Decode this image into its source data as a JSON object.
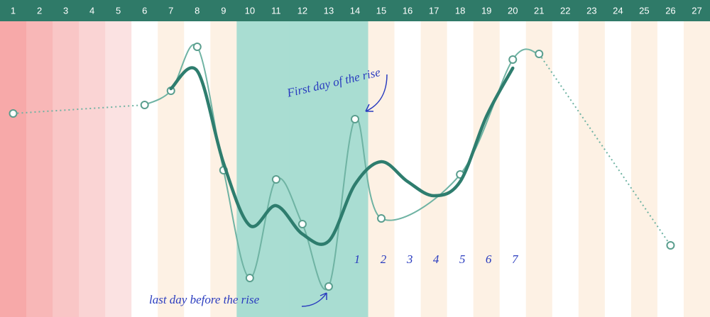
{
  "chart_data": {
    "type": "line",
    "categories": [
      "1",
      "2",
      "3",
      "4",
      "5",
      "6",
      "7",
      "8",
      "9",
      "10",
      "11",
      "12",
      "13",
      "14",
      "15",
      "16",
      "17",
      "18",
      "19",
      "20",
      "21",
      "22",
      "23",
      "24",
      "25",
      "26",
      "27"
    ],
    "series": [
      {
        "color": "#6fb3a3",
        "values": [
          70,
          null,
          null,
          null,
          null,
          73,
          78,
          93.5,
          50,
          12,
          46.75,
          31,
          9,
          68,
          33,
          null,
          null,
          48.5,
          null,
          89,
          91,
          null,
          null,
          null,
          null,
          23.5,
          null
        ]
      },
      {
        "color": "#2e7d6e",
        "values": [
          null,
          null,
          null,
          null,
          null,
          null,
          78.75,
          85,
          52.5,
          30.5,
          37.5,
          27.5,
          25,
          45,
          53,
          46,
          41,
          46,
          69,
          86,
          null,
          null,
          null,
          null,
          null,
          null,
          null
        ]
      }
    ],
    "ylim": [
      0,
      100
    ],
    "header_color": "#2f7a68",
    "column_colors": [
      "#f7a9a9",
      "#f8b7b7",
      "#f9c6c6",
      "#fad4d4",
      "#fbe2e2",
      "#ffffff",
      "#fdf1e4",
      "#ffffff",
      "#fdf1e4",
      "#a9ddd2",
      "#a9ddd2",
      "#a9ddd2",
      "#a9ddd2",
      "#a9ddd2",
      "#fdf1e4",
      "#ffffff",
      "#fdf1e4",
      "#ffffff",
      "#fdf1e4",
      "#ffffff",
      "#fdf1e4",
      "#ffffff",
      "#fdf1e4",
      "#ffffff",
      "#fdf1e4",
      "#ffffff",
      "#fdf1e4"
    ],
    "annotations": [
      "First day of the rise",
      "last day before the rise"
    ],
    "rise_count_labels": [
      "1",
      "2",
      "3",
      "4",
      "5",
      "6",
      "7"
    ],
    "annotation_color": "#2a3cbf"
  }
}
